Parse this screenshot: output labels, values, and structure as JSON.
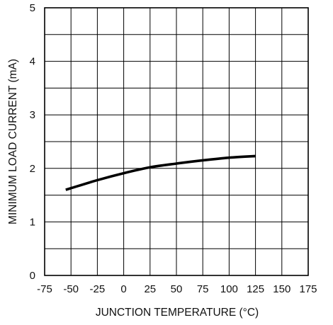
{
  "chart_data": {
    "type": "line",
    "xlabel": "JUNCTION TEMPERATURE (°C)",
    "ylabel": "MINIMUM LOAD CURRENT (mA)",
    "xlim": [
      -75,
      175
    ],
    "ylim": [
      0,
      5
    ],
    "x_ticks": [
      "-75",
      "-50",
      "-25",
      "0",
      "25",
      "50",
      "75",
      "100",
      "125",
      "150",
      "175"
    ],
    "y_ticks": [
      "0",
      "1",
      "2",
      "3",
      "4",
      "5"
    ],
    "grid": true,
    "grid_x_step": 25,
    "grid_y_step": 0.5,
    "series": [
      {
        "x": [
          -55,
          -50,
          -25,
          0,
          25,
          50,
          75,
          100,
          125
        ],
        "y": [
          1.6,
          1.63,
          1.78,
          1.91,
          2.02,
          2.09,
          2.15,
          2.2,
          2.23
        ],
        "color": "#000000"
      }
    ]
  }
}
